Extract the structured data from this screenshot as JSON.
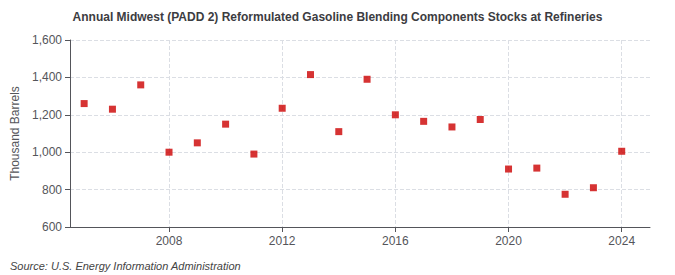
{
  "chart_data": {
    "type": "scatter",
    "title": "Annual Midwest (PADD 2) Reformulated Gasoline Blending Components Stocks at Refineries",
    "ylabel": "Thousand Barrels",
    "annotations": [
      "Source: U.S. Energy Information Administration"
    ],
    "x": [
      2005,
      2006,
      2007,
      2008,
      2009,
      2010,
      2011,
      2012,
      2013,
      2014,
      2015,
      2016,
      2017,
      2018,
      2019,
      2020,
      2021,
      2022,
      2023,
      2024
    ],
    "values": [
      1260,
      1230,
      1360,
      1000,
      1050,
      1150,
      990,
      1235,
      1415,
      1110,
      1390,
      1200,
      1165,
      1135,
      1175,
      910,
      915,
      775,
      810,
      1005
    ],
    "color": "#cc0000",
    "marker": "square",
    "xlim": [
      2004.5,
      2025.0
    ],
    "xticks": [
      2008,
      2012,
      2016,
      2020,
      2024
    ],
    "ylim": [
      600,
      1600
    ],
    "yticks": [
      600,
      800,
      {
        "value": 1000,
        "label": "1,000"
      },
      {
        "value": 1200,
        "label": "1,200"
      },
      {
        "value": 1400,
        "label": "1,400"
      },
      {
        "value": 1600,
        "label": "1,600"
      }
    ],
    "grid": true
  }
}
